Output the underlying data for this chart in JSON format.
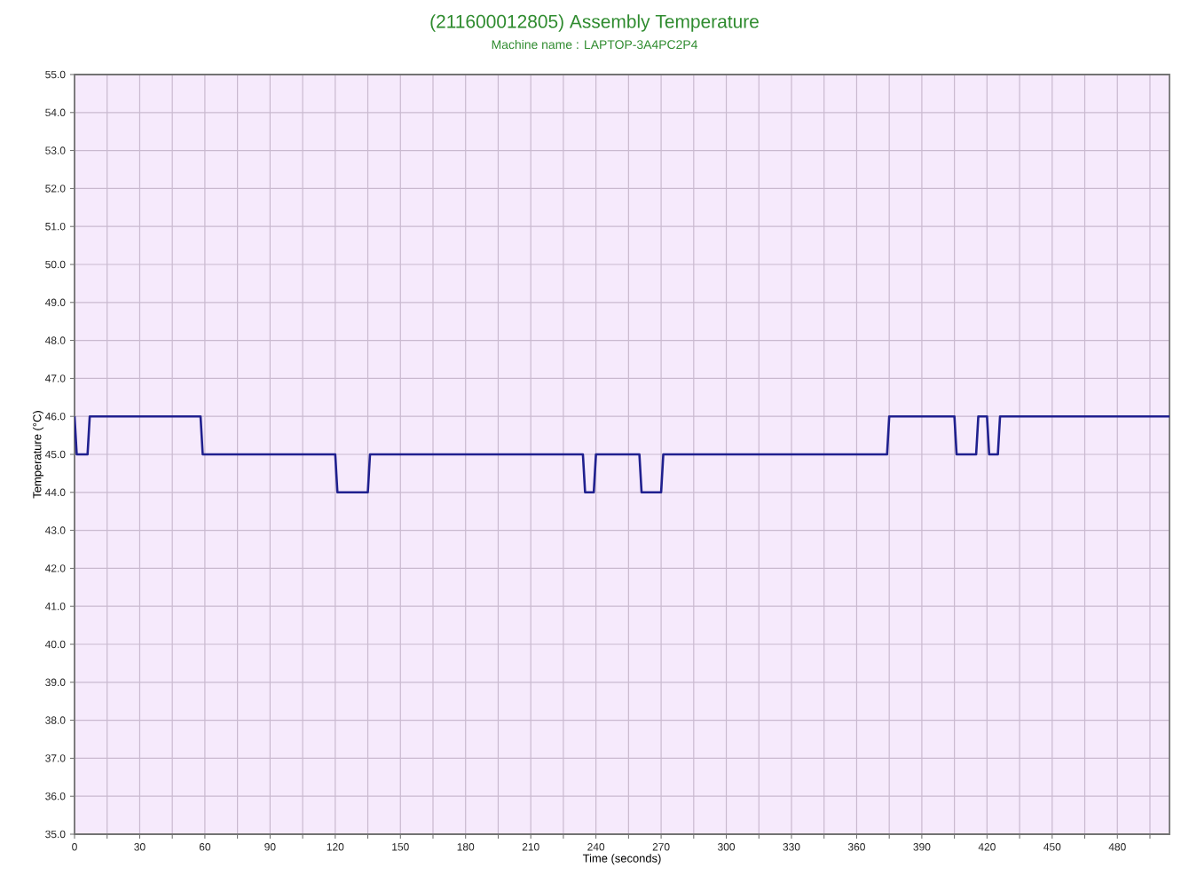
{
  "chart_data": {
    "type": "line",
    "title": "(211600012805) Assembly Temperature",
    "subtitle": "Machine name : LAPTOP-3A4PC2P4",
    "xlabel": "Time (seconds)",
    "ylabel": "Temperature (°C)",
    "x": [
      0,
      1,
      6,
      7,
      58,
      59,
      120,
      121,
      135,
      136,
      234,
      235,
      239,
      240,
      260,
      261,
      270,
      271,
      374,
      375,
      405,
      406,
      415,
      416,
      420,
      421,
      425,
      426,
      504
    ],
    "series": [
      {
        "color": "#20208f",
        "values": [
          46,
          45,
          45,
          46,
          46,
          45,
          45,
          44,
          44,
          45,
          45,
          44,
          44,
          45,
          45,
          44,
          44,
          45,
          45,
          46,
          46,
          45,
          45,
          46,
          46,
          45,
          45,
          46,
          46
        ]
      }
    ],
    "xlim": [
      0,
      504
    ],
    "ylim": [
      35,
      55
    ],
    "xticks": [
      0,
      {
        "value": 15,
        "label": null
      },
      30,
      {
        "value": 45,
        "label": null
      },
      60,
      {
        "value": 75,
        "label": null
      },
      90,
      {
        "value": 105,
        "label": null
      },
      120,
      {
        "value": 135,
        "label": null
      },
      150,
      {
        "value": 165,
        "label": null
      },
      180,
      {
        "value": 195,
        "label": null
      },
      210,
      {
        "value": 225,
        "label": null
      },
      240,
      {
        "value": 255,
        "label": null
      },
      270,
      {
        "value": 285,
        "label": null
      },
      300,
      {
        "value": 315,
        "label": null
      },
      330,
      {
        "value": 345,
        "label": null
      },
      360,
      {
        "value": 375,
        "label": null
      },
      390,
      {
        "value": 405,
        "label": null
      },
      420,
      {
        "value": 435,
        "label": null
      },
      450,
      {
        "value": 465,
        "label": null
      },
      480,
      {
        "value": 495,
        "label": null
      }
    ],
    "yticks": [
      {
        "value": 35,
        "label": "35.0"
      },
      {
        "value": 36,
        "label": "36.0"
      },
      {
        "value": 37,
        "label": "37.0"
      },
      {
        "value": 38,
        "label": "38.0"
      },
      {
        "value": 39,
        "label": "39.0"
      },
      {
        "value": 40,
        "label": "40.0"
      },
      {
        "value": 41,
        "label": "41.0"
      },
      {
        "value": 42,
        "label": "42.0"
      },
      {
        "value": 43,
        "label": "43.0"
      },
      {
        "value": 44,
        "label": "44.0"
      },
      {
        "value": 45,
        "label": "45.0"
      },
      {
        "value": 46,
        "label": "46.0"
      },
      {
        "value": 47,
        "label": "47.0"
      },
      {
        "value": 48,
        "label": "48.0"
      },
      {
        "value": 49,
        "label": "49.0"
      },
      {
        "value": 50,
        "label": "50.0"
      },
      {
        "value": 51,
        "label": "51.0"
      },
      {
        "value": 52,
        "label": "52.0"
      },
      {
        "value": 53,
        "label": "53.0"
      },
      {
        "value": 54,
        "label": "54.0"
      },
      {
        "value": 55,
        "label": "55.0"
      }
    ],
    "grid": true
  }
}
